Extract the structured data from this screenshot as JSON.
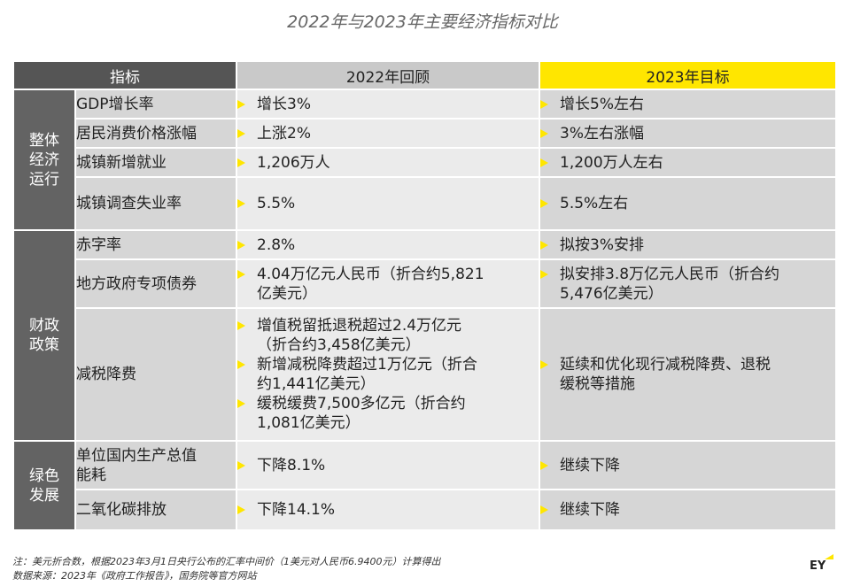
{
  "title": "2022年与2023年主要经济指标对比",
  "header": {
    "indicator": "指标",
    "review_2022": "2022年回顾",
    "target_2023": "2023年目标"
  },
  "groups": [
    {
      "category": [
        "整体",
        "经济",
        "运行"
      ],
      "rows": [
        {
          "name": [
            "GDP增长率"
          ],
          "v2022": [
            [
              "增长3%"
            ]
          ],
          "v2023": [
            [
              "增长5%左右"
            ]
          ]
        },
        {
          "name": [
            "居民消费价格涨幅"
          ],
          "v2022": [
            [
              "上涨2%"
            ]
          ],
          "v2023": [
            [
              "3%左右涨幅"
            ]
          ]
        },
        {
          "name": [
            "城镇新增就业"
          ],
          "v2022": [
            [
              "1,206万人"
            ]
          ],
          "v2023": [
            [
              "1,200万人左右"
            ]
          ]
        },
        {
          "name": [
            "城镇调查失业率"
          ],
          "v2022": [
            [
              "5.5%"
            ]
          ],
          "v2023": [
            [
              "5.5%左右"
            ]
          ]
        }
      ]
    },
    {
      "category": [
        "财政",
        "政策"
      ],
      "rows": [
        {
          "name": [
            "赤字率"
          ],
          "v2022": [
            [
              "2.8%"
            ]
          ],
          "v2023": [
            [
              "拟按3%安排"
            ]
          ]
        },
        {
          "name": [
            "地方政府专项债券"
          ],
          "v2022": [
            [
              "4.04万亿元人民币（折合约5,821",
              "亿美元）"
            ]
          ],
          "v2023": [
            [
              "拟安排3.8万亿元人民币（折合约",
              "5,476亿美元）"
            ]
          ]
        },
        {
          "name": [
            "减税降费"
          ],
          "v2022": [
            [
              "增值税留抵退税超过2.4万亿元",
              "（折合约3,458亿美元）"
            ],
            [
              "新增减税降费超过1万亿元（折合",
              "约1,441亿美元）"
            ],
            [
              "缓税缓费7,500多亿元（折合约",
              "1,081亿美元）"
            ]
          ],
          "v2023": [
            [
              "延续和优化现行减税降费、退税",
              "缓税等措施"
            ]
          ]
        }
      ]
    },
    {
      "category": [
        "绿色",
        "发展"
      ],
      "rows": [
        {
          "name": [
            "单位国内生产总值",
            "能耗"
          ],
          "v2022": [
            [
              "下降8.1%"
            ]
          ],
          "v2023": [
            [
              "继续下降"
            ]
          ]
        },
        {
          "name": [
            "二氧化碳排放"
          ],
          "v2022": [
            [
              "下降14.1%"
            ]
          ],
          "v2023": [
            [
              "继续下降"
            ]
          ]
        }
      ]
    }
  ],
  "notes": {
    "note1": "注：美元折合数，根据2023年3月1日央行公布的汇率中间价（1美元对人民币6.9400元）计算得出",
    "note2": "数据来源：2023年《政府工作报告》，国务院等官方网站"
  },
  "logo": {
    "text": "EY",
    "accent_color": "#ffe600"
  }
}
